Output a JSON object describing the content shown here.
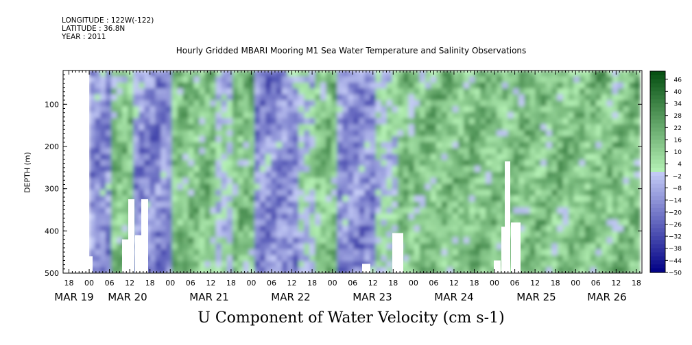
{
  "header": {
    "longitude": "LONGITUDE : 122W(-122)",
    "latitude": "LATITUDE : 36.8N",
    "year": "YEAR : 2011"
  },
  "chart_data": {
    "type": "heatmap",
    "title": "Hourly Gridded MBARI Mooring M1 Sea Water Temperature and Salinity Observations",
    "xlabel": "U Component of Water Velocity (cm s-1)",
    "ylabel": "DEPTH (m)",
    "y_axis": {
      "range": [
        500,
        20
      ],
      "reversed": true,
      "ticks": [
        100,
        200,
        300,
        400,
        500
      ]
    },
    "x_axis": {
      "hour_ticks": [
        "18",
        "00",
        "06",
        "12",
        "18",
        "00",
        "06",
        "12",
        "18",
        "00",
        "06",
        "12",
        "18",
        "00",
        "06",
        "12",
        "18",
        "00",
        "06",
        "12",
        "18",
        "00",
        "06",
        "12",
        "18",
        "00",
        "06",
        "12",
        "18",
        "00",
        "06",
        "12"
      ],
      "day_labels": [
        "MAR 19",
        "MAR 20",
        "MAR 21",
        "MAR 22",
        "MAR 23",
        "MAR 24",
        "MAR 25",
        "MAR 26"
      ]
    },
    "colorbar": {
      "levels": [
        46,
        40,
        34,
        28,
        22,
        16,
        10,
        4,
        -2,
        -8,
        -14,
        -20,
        -26,
        -32,
        -38,
        -44,
        -50
      ],
      "range": [
        -50,
        50
      ]
    },
    "bands": [
      {
        "time": "MAR 19 00",
        "dominant": "negative"
      },
      {
        "time": "MAR 19 06",
        "dominant": "positive"
      },
      {
        "time": "MAR 19 12",
        "dominant": "negative"
      },
      {
        "time": "MAR 19 18",
        "dominant": "negative"
      },
      {
        "time": "MAR 20 00",
        "dominant": "positive"
      },
      {
        "time": "MAR 20 06",
        "dominant": "positive"
      },
      {
        "time": "MAR 20 12",
        "dominant": "mixed"
      },
      {
        "time": "MAR 20 18",
        "dominant": "positive"
      },
      {
        "time": "MAR 21 00",
        "dominant": "negative"
      },
      {
        "time": "MAR 21 06",
        "dominant": "negative"
      },
      {
        "time": "MAR 21 12",
        "dominant": "mixed"
      },
      {
        "time": "MAR 21 18",
        "dominant": "positive"
      },
      {
        "time": "MAR 22 00",
        "dominant": "negative"
      },
      {
        "time": "MAR 22 06",
        "dominant": "negative"
      },
      {
        "time": "MAR 22 12",
        "dominant": "mixed"
      },
      {
        "time": "MAR 22 18",
        "dominant": "positive"
      },
      {
        "time": "MAR 23 00",
        "dominant": "positive"
      },
      {
        "time": "MAR 23 06",
        "dominant": "positive"
      },
      {
        "time": "MAR 23 12",
        "dominant": "positive"
      },
      {
        "time": "MAR 23 18",
        "dominant": "positive"
      },
      {
        "time": "MAR 24 00",
        "dominant": "positive"
      },
      {
        "time": "MAR 24 06",
        "dominant": "positive"
      },
      {
        "time": "MAR 24 12",
        "dominant": "positive"
      },
      {
        "time": "MAR 24 18",
        "dominant": "positive"
      },
      {
        "time": "MAR 25 00",
        "dominant": "positive"
      },
      {
        "time": "MAR 25 06",
        "dominant": "positive"
      },
      {
        "time": "MAR 25 12",
        "dominant": "positive"
      }
    ]
  }
}
